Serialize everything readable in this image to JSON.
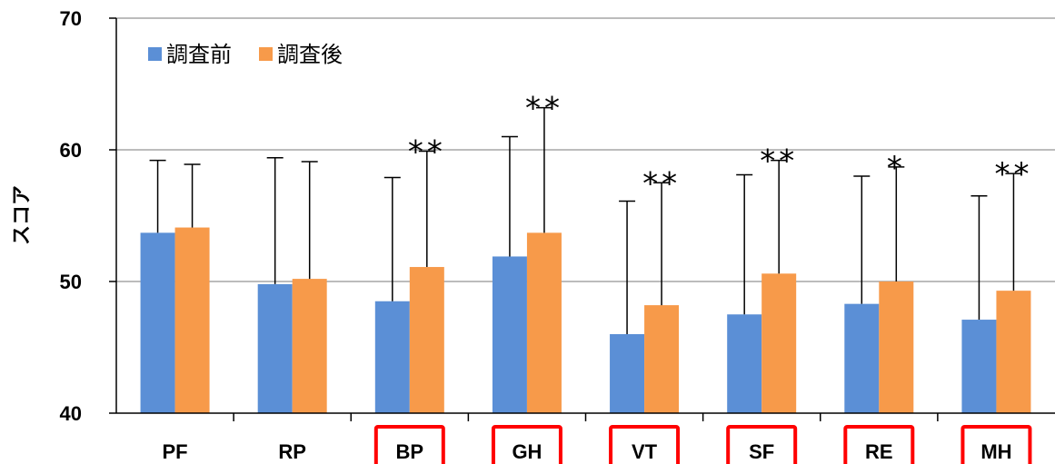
{
  "chart_data": {
    "type": "bar",
    "categories": [
      "PF",
      "RP",
      "BP",
      "GH",
      "VT",
      "SF",
      "RE",
      "MH"
    ],
    "highlighted_categories": [
      "BP",
      "GH",
      "VT",
      "SF",
      "RE",
      "MH"
    ],
    "highlight_color": "#ff0000",
    "series": [
      {
        "name": "調査前",
        "color": "#5b8fd6",
        "values": [
          53.7,
          49.8,
          48.5,
          51.9,
          46.0,
          47.5,
          48.3,
          47.1
        ],
        "error_upper": [
          59.2,
          59.4,
          57.9,
          61.0,
          56.1,
          58.1,
          58.0,
          56.5
        ]
      },
      {
        "name": "調査後",
        "color": "#f79a4a",
        "values": [
          54.1,
          50.2,
          51.1,
          53.7,
          48.2,
          50.6,
          50.0,
          49.3
        ],
        "error_upper": [
          58.9,
          59.1,
          59.9,
          63.2,
          57.5,
          59.2,
          58.7,
          58.2
        ]
      }
    ],
    "significance": [
      "",
      "",
      "**",
      "**",
      "**",
      "**",
      "*",
      "**"
    ],
    "ylabel": "スコア",
    "xlabel": "",
    "ylim": [
      40,
      70
    ],
    "yticks": [
      40,
      50,
      60,
      70
    ],
    "grid": true,
    "legend_position": "top-left"
  }
}
